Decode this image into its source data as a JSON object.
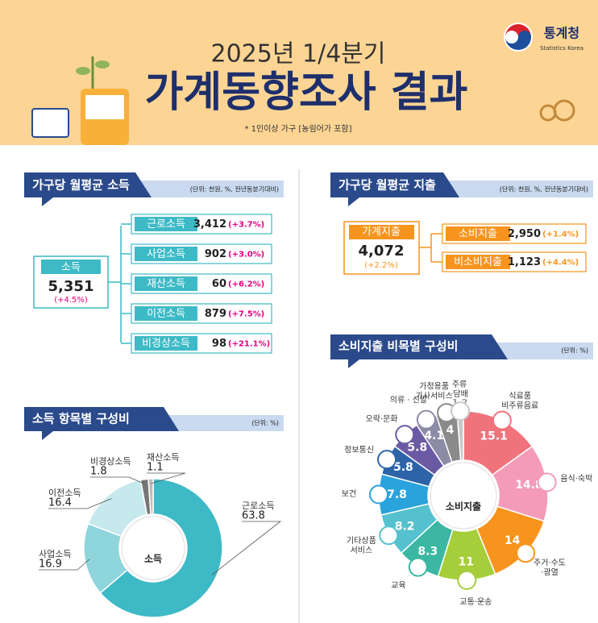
{
  "header": {
    "title_period": "2025년 1/4분기",
    "title": "가계동향조사 결과",
    "note": "* 1인이상 가구 [농림어가 포함]",
    "logo": "통계청",
    "logo_sub": "Statistics Korea"
  },
  "income": {
    "title": "가구당 월평균 소득",
    "unit": "(단위: 천원, %, 전년동분기대비)",
    "total": {
      "label": "소득",
      "value": "5,351",
      "change": "(+4.5%)"
    },
    "items": [
      {
        "label": "근로소득",
        "value": "3,412",
        "change": "(+3.7%)"
      },
      {
        "label": "사업소득",
        "value": "902",
        "change": "(+3.0%)"
      },
      {
        "label": "재산소득",
        "value": "60",
        "change": "(+6.2%)"
      },
      {
        "label": "이전소득",
        "value": "879",
        "change": "(+7.5%)"
      },
      {
        "label": "비경상소득",
        "value": "98",
        "change": "(+21.1%)"
      }
    ]
  },
  "expenditure": {
    "title": "가구당 월평균 지출",
    "unit": "(단위: 천원, %, 전년동분기대비)",
    "total": {
      "label": "가계지출",
      "value": "4,072",
      "change": "(+2.2%)"
    },
    "items": [
      {
        "label": "소비지출",
        "value": "2,950",
        "change": "(+1.4%)"
      },
      {
        "label": "비소비지출",
        "value": "1,123",
        "change": "(+4.4%)"
      }
    ]
  },
  "chart_data": [
    {
      "type": "pie",
      "title": "소득 항목별 구성비",
      "unit_label": "(단위: %)",
      "center_label": "소득",
      "categories": [
        "근로소득",
        "사업소득",
        "이전소득",
        "비경상소득",
        "재산소득"
      ],
      "values": [
        63.8,
        16.9,
        16.4,
        1.8,
        1.1
      ],
      "colors": [
        "#3dbac6",
        "#8ed5dc",
        "#c6e9ed",
        "#777777",
        "#bdbdbd"
      ]
    },
    {
      "type": "pie",
      "title": "소비지출 비목별 구성비",
      "unit_label": "(단위: %)",
      "center_label": "소비지출",
      "categories": [
        "식료품\n비주류음료",
        "음식·숙박",
        "주거·수도\n·광열",
        "교통·운송",
        "교육",
        "기타상품\n서비스",
        "보건",
        "정보통신",
        "오락·문화",
        "의류 · 신발",
        "가정용품\n가사서비스",
        "주류\n·담배"
      ],
      "values": [
        15.1,
        14.8,
        14.0,
        11.0,
        8.3,
        8.2,
        7.8,
        5.8,
        5.8,
        4.1,
        4.0,
        1.2
      ],
      "colors": [
        "#f0737b",
        "#f49bb9",
        "#f7941d",
        "#a6cd3a",
        "#3bb7a2",
        "#55c1cf",
        "#2aa3dc",
        "#2d64a8",
        "#6b5aa3",
        "#8c8ca6",
        "#8a8a8a",
        "#c8c8c8"
      ]
    }
  ]
}
